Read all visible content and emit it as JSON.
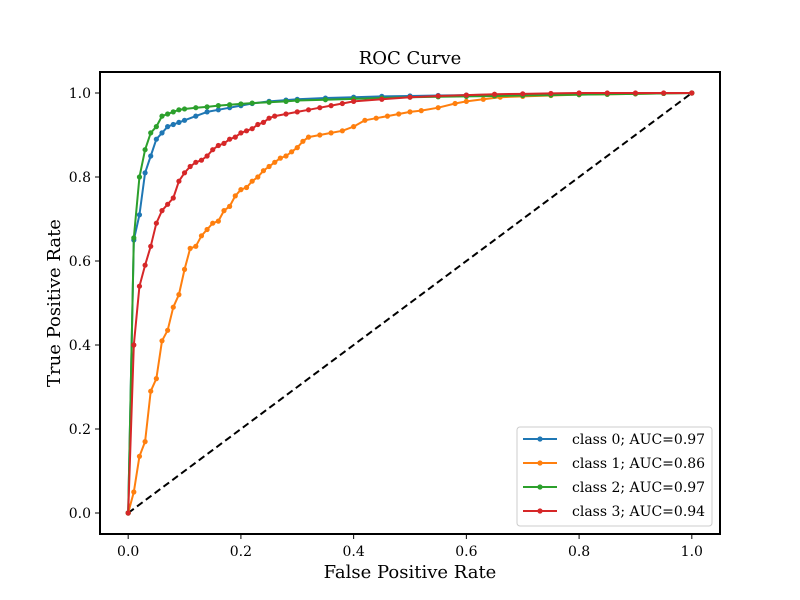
{
  "chart_data": {
    "type": "line",
    "title": "ROC Curve",
    "xlabel": "False Positive Rate",
    "ylabel": "True Positive Rate",
    "xlim": [
      -0.05,
      1.05
    ],
    "ylim": [
      -0.05,
      1.05
    ],
    "xticks": [
      0.0,
      0.2,
      0.4,
      0.6,
      0.8,
      1.0
    ],
    "yticks": [
      0.0,
      0.2,
      0.4,
      0.6,
      0.8,
      1.0
    ],
    "xtick_labels": [
      "0.0",
      "0.2",
      "0.4",
      "0.6",
      "0.8",
      "1.0"
    ],
    "ytick_labels": [
      "0.0",
      "0.2",
      "0.4",
      "0.6",
      "0.8",
      "1.0"
    ],
    "grid": false,
    "legend_position": "bottom-right",
    "reference_line": {
      "x": [
        0,
        1
      ],
      "y": [
        0,
        1
      ],
      "style": "dashed",
      "color": "#000000"
    },
    "series": [
      {
        "name": "class 0; AUC=0.97",
        "color": "#1f77b4",
        "x": [
          0.0,
          0.01,
          0.02,
          0.03,
          0.04,
          0.05,
          0.06,
          0.07,
          0.08,
          0.09,
          0.1,
          0.12,
          0.14,
          0.16,
          0.18,
          0.2,
          0.22,
          0.25,
          0.28,
          0.3,
          0.35,
          0.4,
          0.45,
          0.5,
          0.55,
          0.6,
          0.65,
          0.7,
          0.75,
          0.8,
          0.85,
          0.9,
          0.95,
          1.0
        ],
        "y": [
          0.0,
          0.65,
          0.71,
          0.81,
          0.85,
          0.89,
          0.905,
          0.92,
          0.925,
          0.93,
          0.935,
          0.945,
          0.955,
          0.96,
          0.965,
          0.97,
          0.975,
          0.98,
          0.983,
          0.985,
          0.988,
          0.99,
          0.992,
          0.993,
          0.994,
          0.995,
          0.996,
          0.997,
          0.997,
          0.998,
          0.998,
          0.999,
          0.999,
          1.0
        ]
      },
      {
        "name": "class 1; AUC=0.86",
        "color": "#ff7f0e",
        "x": [
          0.0,
          0.01,
          0.02,
          0.03,
          0.04,
          0.05,
          0.06,
          0.07,
          0.08,
          0.09,
          0.1,
          0.11,
          0.12,
          0.13,
          0.14,
          0.15,
          0.16,
          0.17,
          0.18,
          0.19,
          0.2,
          0.21,
          0.22,
          0.23,
          0.24,
          0.25,
          0.26,
          0.27,
          0.28,
          0.29,
          0.3,
          0.31,
          0.32,
          0.34,
          0.36,
          0.38,
          0.4,
          0.42,
          0.44,
          0.46,
          0.48,
          0.5,
          0.52,
          0.55,
          0.58,
          0.6,
          0.63,
          0.66,
          0.7,
          0.75,
          0.8,
          0.85,
          0.9,
          0.95,
          1.0
        ],
        "y": [
          0.0,
          0.05,
          0.135,
          0.17,
          0.29,
          0.32,
          0.41,
          0.435,
          0.49,
          0.52,
          0.58,
          0.63,
          0.635,
          0.66,
          0.675,
          0.69,
          0.695,
          0.72,
          0.73,
          0.755,
          0.77,
          0.775,
          0.79,
          0.8,
          0.815,
          0.825,
          0.835,
          0.845,
          0.85,
          0.86,
          0.87,
          0.885,
          0.895,
          0.9,
          0.905,
          0.91,
          0.92,
          0.935,
          0.94,
          0.945,
          0.95,
          0.955,
          0.958,
          0.965,
          0.975,
          0.98,
          0.985,
          0.99,
          0.992,
          0.994,
          0.996,
          0.997,
          0.998,
          0.999,
          1.0
        ]
      },
      {
        "name": "class 2; AUC=0.97",
        "color": "#2ca02c",
        "x": [
          0.0,
          0.01,
          0.02,
          0.03,
          0.04,
          0.05,
          0.06,
          0.07,
          0.08,
          0.09,
          0.1,
          0.12,
          0.14,
          0.16,
          0.18,
          0.2,
          0.22,
          0.25,
          0.28,
          0.3,
          0.35,
          0.4,
          0.45,
          0.5,
          0.55,
          0.6,
          0.65,
          0.7,
          0.75,
          0.8,
          0.85,
          0.9,
          0.95,
          1.0
        ],
        "y": [
          0.0,
          0.655,
          0.8,
          0.865,
          0.905,
          0.92,
          0.945,
          0.95,
          0.955,
          0.96,
          0.962,
          0.965,
          0.967,
          0.97,
          0.972,
          0.974,
          0.976,
          0.978,
          0.98,
          0.982,
          0.984,
          0.986,
          0.988,
          0.99,
          0.991,
          0.992,
          0.993,
          0.994,
          0.995,
          0.996,
          0.997,
          0.998,
          0.999,
          1.0
        ]
      },
      {
        "name": "class 3; AUC=0.94",
        "color": "#d62728",
        "x": [
          0.0,
          0.01,
          0.02,
          0.03,
          0.04,
          0.05,
          0.06,
          0.07,
          0.08,
          0.09,
          0.1,
          0.11,
          0.12,
          0.13,
          0.14,
          0.15,
          0.16,
          0.17,
          0.18,
          0.19,
          0.2,
          0.21,
          0.22,
          0.23,
          0.24,
          0.25,
          0.26,
          0.28,
          0.3,
          0.32,
          0.34,
          0.36,
          0.38,
          0.4,
          0.45,
          0.5,
          0.55,
          0.6,
          0.65,
          0.7,
          0.75,
          0.8,
          0.85,
          0.9,
          0.95,
          1.0
        ],
        "y": [
          0.0,
          0.4,
          0.54,
          0.59,
          0.635,
          0.69,
          0.72,
          0.735,
          0.75,
          0.79,
          0.81,
          0.825,
          0.835,
          0.84,
          0.85,
          0.865,
          0.875,
          0.88,
          0.89,
          0.895,
          0.905,
          0.91,
          0.915,
          0.925,
          0.93,
          0.94,
          0.945,
          0.95,
          0.955,
          0.96,
          0.965,
          0.97,
          0.975,
          0.98,
          0.985,
          0.99,
          0.993,
          0.995,
          0.997,
          0.998,
          0.999,
          1.0,
          1.0,
          1.0,
          1.0,
          1.0
        ]
      }
    ]
  }
}
